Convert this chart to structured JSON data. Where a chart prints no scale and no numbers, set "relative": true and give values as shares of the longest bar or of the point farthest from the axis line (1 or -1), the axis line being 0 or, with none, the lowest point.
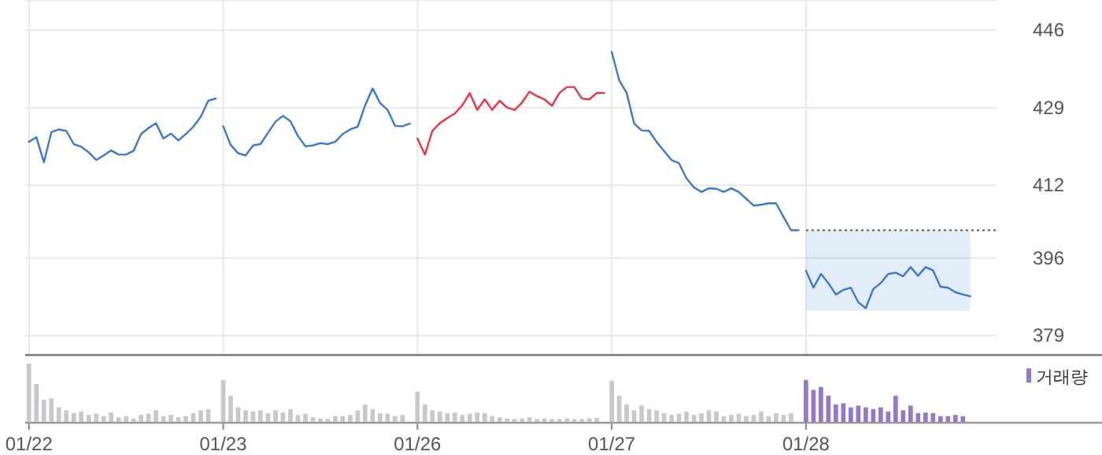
{
  "chart_data": [
    {
      "type": "line",
      "ylim": [
        374.9,
        452.6
      ],
      "yticks": [
        379,
        396,
        412,
        429,
        446
      ],
      "categories": [
        null,
        null,
        null,
        null,
        null,
        null,
        null,
        null,
        null,
        null,
        null,
        null,
        null,
        null,
        null,
        null,
        null,
        null,
        null,
        null,
        null,
        null,
        null,
        null,
        null,
        null,
        null,
        null,
        null,
        null,
        null,
        null,
        null,
        null,
        null,
        null,
        null,
        null,
        null,
        null,
        null,
        null,
        null,
        null,
        null,
        null,
        null,
        null,
        null,
        null,
        null,
        null,
        null,
        null,
        null,
        null,
        null,
        null,
        null,
        null,
        null,
        null,
        null,
        null,
        null,
        null,
        null,
        null,
        null,
        null,
        null,
        null,
        null,
        null,
        null,
        null,
        null,
        null,
        null,
        null,
        null,
        null,
        null,
        null,
        null,
        null,
        null,
        null,
        null,
        null,
        null,
        null,
        null,
        null,
        null,
        null,
        null,
        null,
        null,
        null,
        null,
        null,
        null,
        null,
        null,
        null,
        null,
        null,
        null,
        null,
        null,
        null,
        null,
        null,
        null,
        null,
        null,
        null,
        null,
        null,
        null,
        null,
        null,
        null,
        null,
        null,
        null,
        null,
        null,
        null
      ],
      "grid": true,
      "tick_labels": "y",
      "legend": false,
      "line_style": "solid",
      "marker": "none",
      "series": [
        {
          "color": "#3a78d8",
          "upper": [
            null,
            null,
            null,
            null,
            null,
            null,
            null,
            null,
            null,
            null,
            null,
            null,
            null,
            null,
            null,
            null,
            null,
            null,
            null,
            null,
            null,
            null,
            null,
            null,
            null,
            null,
            null,
            null,
            null,
            null,
            null,
            null,
            null,
            null,
            null,
            null,
            null,
            null,
            null,
            null,
            null,
            null,
            null,
            null,
            null,
            null,
            null,
            null,
            null,
            null,
            null,
            null,
            null,
            null,
            null,
            null,
            null,
            null,
            null,
            null,
            null,
            null,
            null,
            null,
            null,
            null,
            null,
            null,
            null,
            null,
            null,
            null,
            null,
            null,
            null,
            null,
            null,
            null,
            null,
            null,
            null,
            null,
            null,
            null,
            null,
            null,
            null,
            null,
            null,
            null,
            null,
            null,
            null,
            null,
            null,
            null,
            null,
            null,
            null,
            null,
            null,
            null,
            null,
            null,
            402.1,
            402.1,
            402.1,
            402.1,
            402.1,
            402.1,
            402.1,
            402.1,
            402.1,
            402.1,
            402.1,
            402.1,
            402.1,
            402.1,
            402.1,
            402.1,
            402.1,
            402.1,
            402.1,
            402.1,
            402.1,
            402.1,
            402.1,
            null,
            null,
            null
          ],
          "lower": [
            null,
            null,
            null,
            null,
            null,
            null,
            null,
            null,
            null,
            null,
            null,
            null,
            null,
            null,
            null,
            null,
            null,
            null,
            null,
            null,
            null,
            null,
            null,
            null,
            null,
            null,
            null,
            null,
            null,
            null,
            null,
            null,
            null,
            null,
            null,
            null,
            null,
            null,
            null,
            null,
            null,
            null,
            null,
            null,
            null,
            null,
            null,
            null,
            null,
            null,
            null,
            null,
            null,
            null,
            null,
            null,
            null,
            null,
            null,
            null,
            null,
            null,
            null,
            null,
            null,
            null,
            null,
            null,
            null,
            null,
            null,
            null,
            null,
            null,
            null,
            null,
            null,
            null,
            null,
            null,
            null,
            null,
            null,
            null,
            null,
            null,
            null,
            null,
            null,
            null,
            null,
            null,
            null,
            null,
            null,
            null,
            null,
            null,
            null,
            null,
            null,
            null,
            null,
            null,
            384.5,
            384.5,
            384.5,
            384.5,
            384.5,
            384.5,
            384.5,
            384.5,
            384.5,
            384.5,
            384.5,
            384.5,
            384.5,
            384.5,
            384.5,
            384.5,
            384.5,
            384.5,
            384.5,
            384.5,
            384.5,
            384.5,
            384.5,
            null,
            null,
            null
          ],
          "values": [
            421.5,
            422.5,
            417.0,
            423.6,
            424.2,
            423.9,
            421.0,
            420.4,
            419.2,
            417.5,
            418.5,
            419.6,
            418.7,
            418.7,
            419.5,
            423.2,
            424.5,
            425.6,
            422.2,
            423.3,
            421.8,
            423.2,
            424.8,
            427.0,
            430.5,
            431.0,
            424.9,
            420.8,
            419.0,
            418.5,
            420.7,
            421.0,
            423.5,
            425.9,
            427.2,
            426.0,
            422.8,
            420.5,
            420.7,
            421.2,
            421.0,
            421.5,
            423.2,
            424.2,
            424.8,
            429.5,
            433.2,
            430.0,
            428.5,
            425.0,
            424.9,
            425.5,
            null,
            null,
            null,
            null,
            null,
            null,
            null,
            null,
            null,
            null,
            null,
            null,
            null,
            null,
            null,
            null,
            null,
            null,
            null,
            null,
            null,
            null,
            null,
            null,
            null,
            null,
            441.2,
            435.0,
            432.2,
            425.5,
            424.0,
            423.9,
            421.5,
            419.5,
            417.5,
            416.8,
            413.5,
            411.5,
            410.5,
            411.3,
            411.2,
            410.5,
            411.3,
            410.5,
            409.0,
            407.5,
            407.7,
            408.0,
            408.0,
            405.0,
            402.1,
            402.1,
            393.2,
            389.5,
            392.5,
            390.5,
            388.0,
            389.0,
            389.5,
            386.3,
            385.0,
            389.2,
            390.5,
            392.5,
            392.8,
            392.0,
            394.0,
            392.1,
            394.0,
            393.3,
            389.7,
            389.5,
            388.5,
            388.0,
            387.6,
            null,
            null,
            null
          ]
        },
        {
          "color": "#f0303f",
          "values": [
            null,
            null,
            null,
            null,
            null,
            null,
            null,
            null,
            null,
            null,
            null,
            null,
            null,
            null,
            null,
            null,
            null,
            null,
            null,
            null,
            null,
            null,
            null,
            null,
            null,
            null,
            null,
            null,
            null,
            null,
            null,
            null,
            null,
            null,
            null,
            null,
            null,
            null,
            null,
            null,
            null,
            null,
            null,
            null,
            null,
            null,
            null,
            null,
            null,
            null,
            null,
            null,
            422.2,
            418.7,
            423.9,
            425.6,
            426.7,
            427.7,
            429.5,
            432.2,
            428.5,
            430.8,
            428.5,
            430.5,
            429.0,
            428.5,
            430.1,
            432.5,
            431.5,
            430.8,
            429.4,
            432.2,
            433.5,
            433.5,
            431.0,
            430.8,
            432.2,
            432.2,
            null,
            null,
            null,
            null,
            null,
            null,
            null,
            null,
            null,
            null,
            null,
            null,
            null,
            null,
            null,
            null,
            null,
            null,
            null,
            null,
            null,
            null,
            null,
            null,
            null,
            null,
            null,
            null,
            null,
            null,
            null,
            null,
            null,
            null,
            null,
            null,
            null,
            null,
            null,
            null,
            null,
            null,
            null,
            null,
            null,
            null,
            null,
            null,
            null,
            null,
            null,
            null
          ]
        }
      ],
      "ref_lines": [
        {
          "axis": "y",
          "value": 402.1,
          "line_style": "dotted",
          "color": "#555555"
        }
      ]
    },
    {
      "type": "bar",
      "relative": true,
      "tick_labels": "x",
      "grid": false,
      "legend": "top right",
      "categories": [
        "01/22",
        null,
        null,
        null,
        null,
        null,
        null,
        null,
        null,
        null,
        null,
        null,
        null,
        null,
        null,
        null,
        null,
        null,
        null,
        null,
        null,
        null,
        null,
        null,
        null,
        null,
        "01/23",
        null,
        null,
        null,
        null,
        null,
        null,
        null,
        null,
        null,
        null,
        null,
        null,
        null,
        null,
        null,
        null,
        null,
        null,
        null,
        null,
        null,
        null,
        null,
        null,
        null,
        "01/26",
        null,
        null,
        null,
        null,
        null,
        null,
        null,
        null,
        null,
        null,
        null,
        null,
        null,
        null,
        null,
        null,
        null,
        null,
        null,
        null,
        null,
        null,
        null,
        null,
        null,
        "01/27",
        null,
        null,
        null,
        null,
        null,
        null,
        null,
        null,
        null,
        null,
        null,
        null,
        null,
        null,
        null,
        null,
        null,
        null,
        null,
        null,
        null,
        null,
        null,
        null,
        null,
        "01/28",
        null,
        null,
        null,
        null,
        null,
        null,
        null,
        null,
        null,
        null,
        null,
        null,
        null,
        null,
        null,
        null,
        null,
        null,
        null,
        null,
        null,
        null,
        null,
        null,
        null
      ],
      "series": [
        {
          "color": "#c6c8cb",
          "values": [
            1.0,
            0.65,
            0.38,
            0.4,
            0.25,
            0.2,
            0.15,
            0.18,
            0.12,
            0.14,
            0.1,
            0.16,
            0.08,
            0.1,
            0.06,
            0.12,
            0.14,
            0.2,
            0.1,
            0.12,
            0.08,
            0.1,
            0.15,
            0.2,
            0.22,
            null,
            0.72,
            0.45,
            0.25,
            0.2,
            0.18,
            0.2,
            0.15,
            0.2,
            0.16,
            0.22,
            0.12,
            0.14,
            0.08,
            0.06,
            0.05,
            0.1,
            0.1,
            0.12,
            0.2,
            0.3,
            0.22,
            0.15,
            0.14,
            0.1,
            0.12,
            null,
            0.52,
            0.3,
            0.2,
            0.18,
            0.15,
            0.16,
            0.12,
            0.14,
            0.16,
            0.15,
            0.1,
            0.08,
            0.06,
            0.05,
            0.06,
            0.08,
            0.05,
            0.06,
            0.05,
            0.05,
            0.06,
            0.05,
            0.05,
            0.06,
            0.07,
            null,
            0.71,
            0.45,
            0.3,
            0.2,
            0.28,
            0.22,
            0.2,
            0.15,
            0.12,
            0.14,
            0.18,
            0.12,
            0.15,
            0.2,
            0.18,
            0.1,
            0.12,
            0.14,
            0.1,
            0.12,
            0.18,
            0.1,
            0.15,
            0.12,
            0.15,
            null,
            null,
            null,
            null,
            null,
            null,
            null,
            null,
            null,
            null,
            null,
            null,
            null,
            null,
            null,
            null,
            null,
            null,
            null,
            null,
            null,
            null,
            null,
            null,
            null,
            null,
            null
          ]
        },
        {
          "name": "거래량",
          "color": "#9479c8",
          "values": [
            null,
            null,
            null,
            null,
            null,
            null,
            null,
            null,
            null,
            null,
            null,
            null,
            null,
            null,
            null,
            null,
            null,
            null,
            null,
            null,
            null,
            null,
            null,
            null,
            null,
            null,
            null,
            null,
            null,
            null,
            null,
            null,
            null,
            null,
            null,
            null,
            null,
            null,
            null,
            null,
            null,
            null,
            null,
            null,
            null,
            null,
            null,
            null,
            null,
            null,
            null,
            null,
            null,
            null,
            null,
            null,
            null,
            null,
            null,
            null,
            null,
            null,
            null,
            null,
            null,
            null,
            null,
            null,
            null,
            null,
            null,
            null,
            null,
            null,
            null,
            null,
            null,
            null,
            null,
            null,
            null,
            null,
            null,
            null,
            null,
            null,
            null,
            null,
            null,
            null,
            null,
            null,
            null,
            null,
            null,
            null,
            null,
            null,
            null,
            null,
            null,
            null,
            null,
            null,
            0.72,
            0.55,
            0.6,
            0.45,
            0.3,
            0.32,
            0.25,
            0.28,
            0.25,
            0.22,
            0.25,
            0.18,
            0.45,
            0.2,
            0.28,
            0.15,
            0.16,
            0.15,
            0.1,
            0.1,
            0.12,
            0.1,
            null,
            null,
            null,
            null
          ]
        }
      ]
    }
  ]
}
